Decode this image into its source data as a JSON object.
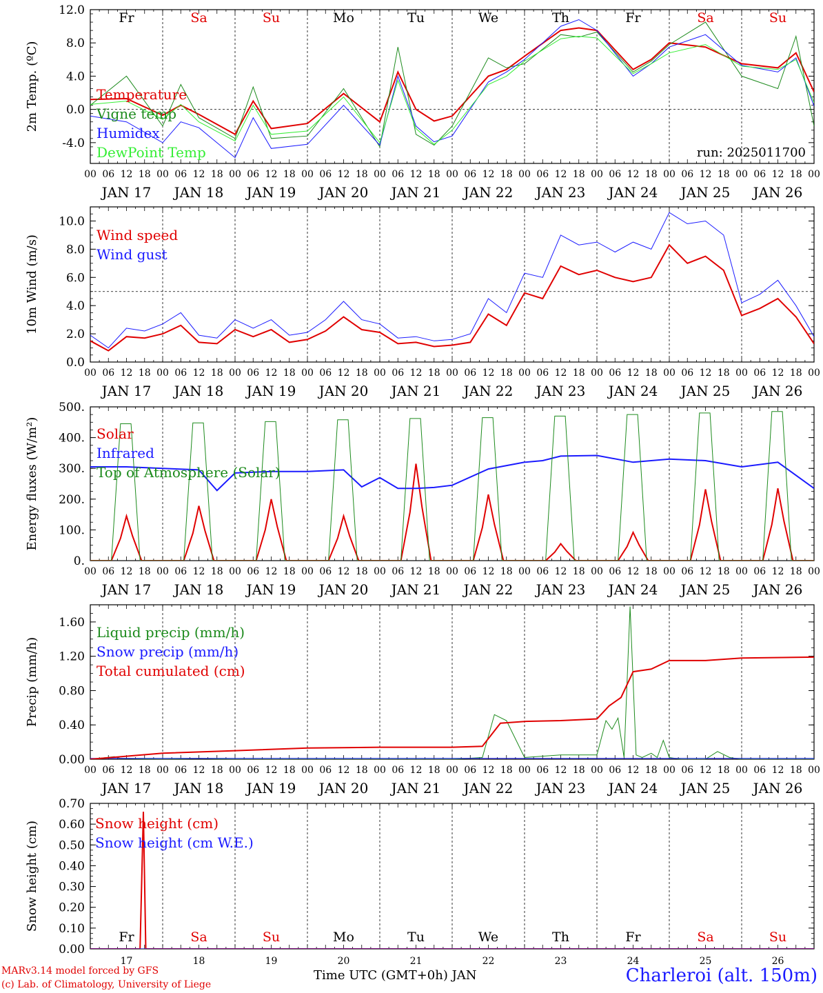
{
  "footer": {
    "credit_model": "MARv3.14 model forced by GFS",
    "credit_lab": "(c) Lab. of Climatology, University of Liege",
    "xtitle": "Time UTC (GMT+0h) JAN",
    "station": "Charleroi (alt. 150m)"
  },
  "colors": {
    "red": "#e00000",
    "darkgreen": "#1c8a1c",
    "blue": "#1a1aff",
    "lightgreen": "#33ee33"
  },
  "chart_data": [
    {
      "id": "temp",
      "type": "line",
      "ylabel": "2m Temp. (ºC)",
      "ylim": [
        -6.5,
        12.0
      ],
      "yticks": [
        "12.0",
        "8.0",
        "4.0",
        "0.0",
        "-4.0"
      ],
      "yticks_values": [
        12,
        8,
        4,
        0,
        -4
      ],
      "ref_line": 0,
      "run_label": "run: 2025011700",
      "day_labels": [
        "Fr",
        "Sa",
        "Su",
        "Mo",
        "Tu",
        "We",
        "Th",
        "Fr",
        "Sa",
        "Su"
      ],
      "day_label_colors": [
        "#000000",
        "#e00000",
        "#e00000",
        "#000000",
        "#000000",
        "#000000",
        "#000000",
        "#000000",
        "#e00000",
        "#e00000"
      ],
      "x_hours": [
        "00",
        "06",
        "12",
        "18"
      ],
      "dates": [
        "JAN 17",
        "JAN 18",
        "JAN 19",
        "JAN 20",
        "JAN 21",
        "JAN 22",
        "JAN 23",
        "JAN 24",
        "JAN 25",
        "JAN 26"
      ],
      "series": [
        {
          "name": "Temperature",
          "color": "#e00000",
          "width": 2,
          "t": [
            0,
            12,
            24,
            30,
            36,
            48,
            54,
            60,
            72,
            84,
            96,
            102,
            108,
            114,
            120,
            132,
            138,
            144,
            156,
            162,
            168,
            180,
            186,
            192,
            204,
            216,
            228,
            234,
            240
          ],
          "v": [
            1.2,
            1.3,
            -0.7,
            0.5,
            -0.6,
            -3.0,
            1.0,
            -2.3,
            -1.7,
            1.9,
            -1.5,
            4.5,
            0.0,
            -1.4,
            -0.8,
            4.0,
            4.8,
            6.4,
            9.5,
            9.8,
            9.5,
            4.8,
            6.0,
            8.0,
            7.5,
            5.5,
            5.0,
            6.8,
            2.1
          ]
        },
        {
          "name": "Vigne temp",
          "color": "#1c8a1c",
          "width": 1,
          "t": [
            0,
            12,
            24,
            30,
            36,
            48,
            54,
            60,
            72,
            84,
            96,
            102,
            108,
            114,
            120,
            132,
            138,
            144,
            156,
            162,
            168,
            180,
            186,
            192,
            204,
            216,
            228,
            234,
            240
          ],
          "v": [
            0.5,
            4.0,
            -2.0,
            3.0,
            -1.0,
            -3.5,
            2.7,
            -3.5,
            -3.2,
            2.5,
            -4.5,
            7.5,
            -3.0,
            -4.3,
            -2.0,
            6.2,
            5.0,
            5.5,
            9.0,
            8.7,
            9.3,
            4.5,
            5.8,
            7.8,
            10.5,
            4.0,
            2.5,
            8.8,
            -2.0
          ]
        },
        {
          "name": "Humidex",
          "color": "#1a1aff",
          "width": 1,
          "t": [
            0,
            12,
            24,
            30,
            36,
            48,
            54,
            60,
            72,
            84,
            96,
            102,
            108,
            114,
            120,
            132,
            138,
            144,
            156,
            162,
            168,
            180,
            186,
            192,
            204,
            216,
            228,
            234,
            240
          ],
          "v": [
            -0.8,
            -1.5,
            -4.0,
            -1.5,
            -2.2,
            -5.8,
            -1.0,
            -4.7,
            -4.2,
            0.5,
            -4.3,
            4.0,
            -2.0,
            -3.9,
            -3.2,
            3.3,
            4.5,
            6.0,
            10.0,
            10.8,
            9.5,
            4.0,
            5.5,
            7.5,
            9.0,
            5.3,
            4.5,
            6.2,
            0.4
          ]
        },
        {
          "name": "DewPoint Temp",
          "color": "#33ee33",
          "width": 1,
          "t": [
            0,
            12,
            24,
            30,
            36,
            48,
            54,
            60,
            72,
            84,
            96,
            102,
            108,
            114,
            120,
            132,
            138,
            144,
            156,
            162,
            168,
            180,
            186,
            192,
            204,
            216,
            228,
            234,
            240
          ],
          "v": [
            0.6,
            1.0,
            -1.2,
            0.6,
            -1.5,
            -3.8,
            0.5,
            -3.0,
            -2.6,
            1.5,
            -4.0,
            3.5,
            -2.3,
            -4.2,
            -2.5,
            3.0,
            4.0,
            5.8,
            8.5,
            8.8,
            8.6,
            4.3,
            5.5,
            6.8,
            7.8,
            5.2,
            4.8,
            6.0,
            0.8
          ]
        }
      ]
    },
    {
      "id": "wind",
      "type": "line",
      "ylabel": "10m Wind (m/s)",
      "ylim": [
        0.0,
        11.0
      ],
      "yticks": [
        "10.0",
        "8.0",
        "6.0",
        "4.0",
        "2.0",
        "0.0"
      ],
      "yticks_values": [
        10,
        8,
        6,
        4,
        2,
        0
      ],
      "ref_line": 5,
      "x_hours": [
        "00",
        "06",
        "12",
        "18"
      ],
      "dates": [
        "JAN 17",
        "JAN 18",
        "JAN 19",
        "JAN 20",
        "JAN 21",
        "JAN 22",
        "JAN 23",
        "JAN 24",
        "JAN 25",
        "JAN 26"
      ],
      "series": [
        {
          "name": "Wind speed",
          "color": "#e00000",
          "width": 2,
          "t": [
            0,
            6,
            12,
            18,
            24,
            30,
            36,
            42,
            48,
            54,
            60,
            66,
            72,
            78,
            84,
            90,
            96,
            102,
            108,
            114,
            120,
            126,
            132,
            138,
            144,
            150,
            156,
            162,
            168,
            174,
            180,
            186,
            192,
            198,
            204,
            210,
            216,
            222,
            228,
            234,
            240
          ],
          "v": [
            1.5,
            0.8,
            1.8,
            1.7,
            2.0,
            2.6,
            1.4,
            1.3,
            2.3,
            1.8,
            2.3,
            1.4,
            1.6,
            2.2,
            3.2,
            2.3,
            2.1,
            1.3,
            1.4,
            1.1,
            1.2,
            1.4,
            3.4,
            2.6,
            4.9,
            4.5,
            6.8,
            6.2,
            6.5,
            6.0,
            5.7,
            6.0,
            8.3,
            7.0,
            7.5,
            6.5,
            3.3,
            3.8,
            4.5,
            3.2,
            1.3
          ]
        },
        {
          "name": "Wind gust",
          "color": "#1a1aff",
          "width": 1,
          "t": [
            0,
            6,
            12,
            18,
            24,
            30,
            36,
            42,
            48,
            54,
            60,
            66,
            72,
            78,
            84,
            90,
            96,
            102,
            108,
            114,
            120,
            126,
            132,
            138,
            144,
            150,
            156,
            162,
            168,
            174,
            180,
            186,
            192,
            198,
            204,
            210,
            216,
            222,
            228,
            234,
            240
          ],
          "v": [
            1.9,
            1.0,
            2.4,
            2.2,
            2.7,
            3.5,
            1.9,
            1.7,
            3.0,
            2.4,
            3.0,
            1.9,
            2.1,
            3.0,
            4.3,
            3.0,
            2.7,
            1.7,
            1.8,
            1.5,
            1.6,
            2.0,
            4.5,
            3.5,
            6.3,
            6.0,
            9.0,
            8.3,
            8.5,
            7.8,
            8.5,
            8.0,
            10.6,
            9.8,
            10.0,
            9.0,
            4.2,
            4.8,
            5.8,
            4.0,
            1.8
          ]
        }
      ]
    },
    {
      "id": "energy",
      "type": "line",
      "ylabel": "Energy fluxes (W/m²)",
      "ylim": [
        0,
        500
      ],
      "yticks": [
        "500.",
        "400.",
        "300.",
        "200.",
        "100.",
        "0."
      ],
      "yticks_values": [
        500,
        400,
        300,
        200,
        100,
        0
      ],
      "x_hours": [
        "00",
        "06",
        "12",
        "18"
      ],
      "dates": [
        "JAN 17",
        "JAN 18",
        "JAN 19",
        "JAN 20",
        "JAN 21",
        "JAN 22",
        "JAN 23",
        "JAN 24",
        "JAN 25",
        "JAN 26"
      ],
      "solar_peaks": [
        145,
        178,
        200,
        145,
        315,
        215,
        55,
        92,
        232,
        235
      ],
      "toa_peaks": [
        445,
        448,
        452,
        458,
        462,
        465,
        470,
        475,
        480,
        485
      ],
      "series": [
        {
          "name": "Solar",
          "color": "#e00000",
          "width": 2
        },
        {
          "name": "Infrared",
          "color": "#1a1aff",
          "width": 2,
          "t": [
            0,
            12,
            24,
            36,
            42,
            48,
            60,
            72,
            84,
            90,
            96,
            102,
            108,
            114,
            120,
            132,
            144,
            150,
            156,
            168,
            180,
            192,
            204,
            216,
            228,
            240
          ],
          "v": [
            305,
            305,
            300,
            295,
            228,
            285,
            290,
            290,
            295,
            240,
            270,
            235,
            235,
            238,
            245,
            298,
            320,
            325,
            340,
            342,
            320,
            330,
            325,
            305,
            320,
            235
          ]
        },
        {
          "name": "Top of Atmosphere (Solar)",
          "color": "#1c8a1c",
          "width": 1
        }
      ]
    },
    {
      "id": "precip",
      "type": "line",
      "ylabel": "Precip (mm/h)",
      "ylim": [
        0.0,
        1.8
      ],
      "yticks": [
        "1.60",
        "1.20",
        "0.80",
        "0.40",
        "0.00"
      ],
      "yticks_values": [
        1.6,
        1.2,
        0.8,
        0.4,
        0.0
      ],
      "x_hours": [
        "00",
        "06",
        "12",
        "18"
      ],
      "dates": [
        "JAN 17",
        "JAN 18",
        "JAN 19",
        "JAN 20",
        "JAN 21",
        "JAN 22",
        "JAN 23",
        "JAN 24",
        "JAN 25",
        "JAN 26"
      ],
      "series": [
        {
          "name": "Liquid precip (mm/h)",
          "color": "#1c8a1c",
          "width": 1,
          "t": [
            0,
            8,
            10,
            24,
            36,
            48,
            72,
            120,
            130,
            134,
            138,
            144,
            156,
            168,
            171,
            173,
            175,
            177,
            179,
            181,
            183,
            186,
            188,
            190,
            192,
            196,
            204,
            208,
            212,
            216,
            240
          ],
          "v": [
            0,
            0.03,
            0.01,
            0,
            0.01,
            0,
            0,
            0,
            0.02,
            0.52,
            0.45,
            0.02,
            0.05,
            0.05,
            0.45,
            0.35,
            0.48,
            0.02,
            1.78,
            0.05,
            0.02,
            0.07,
            0.02,
            0.22,
            0.02,
            0,
            0,
            0.09,
            0.02,
            0,
            0
          ]
        },
        {
          "name": "Snow precip (mm/h)",
          "color": "#1a1aff",
          "width": 1,
          "t": [
            0,
            240
          ],
          "v": [
            0.01,
            0.01
          ]
        },
        {
          "name": "Total cumulated (cm)",
          "color": "#e00000",
          "width": 2,
          "t": [
            0,
            24,
            48,
            72,
            96,
            120,
            130,
            136,
            144,
            156,
            168,
            172,
            176,
            180,
            186,
            192,
            204,
            216,
            240
          ],
          "v": [
            0.0,
            0.07,
            0.1,
            0.13,
            0.14,
            0.14,
            0.15,
            0.42,
            0.44,
            0.45,
            0.47,
            0.62,
            0.72,
            1.02,
            1.05,
            1.15,
            1.15,
            1.18,
            1.19
          ]
        }
      ]
    },
    {
      "id": "snow",
      "type": "line",
      "ylabel": "Snow height (cm)",
      "ylim": [
        0.0,
        0.7
      ],
      "yticks": [
        "0.70",
        "0.60",
        "0.50",
        "0.40",
        "0.30",
        "0.20",
        "0.10",
        "0.00"
      ],
      "yticks_values": [
        0.7,
        0.6,
        0.5,
        0.4,
        0.3,
        0.2,
        0.1,
        0.0
      ],
      "day_labels": [
        "Fr",
        "Sa",
        "Su",
        "Mo",
        "Tu",
        "We",
        "Th",
        "Fr",
        "Sa",
        "Su"
      ],
      "day_label_colors": [
        "#000000",
        "#e00000",
        "#e00000",
        "#000000",
        "#000000",
        "#000000",
        "#000000",
        "#000000",
        "#e00000",
        "#e00000"
      ],
      "day_numbers": [
        "17",
        "18",
        "19",
        "20",
        "21",
        "22",
        "23",
        "24",
        "25",
        "26"
      ],
      "series": [
        {
          "name": "Snow height (cm)",
          "color": "#e00000",
          "width": 2,
          "t": [
            0,
            16.5,
            17.6,
            18.4,
            240
          ],
          "v": [
            0,
            0,
            0.66,
            0,
            0
          ]
        },
        {
          "name": "Snow height (cm W.E.)",
          "color": "#1a1aff",
          "width": 1,
          "t": [
            0,
            240
          ],
          "v": [
            0,
            0
          ]
        }
      ]
    }
  ]
}
